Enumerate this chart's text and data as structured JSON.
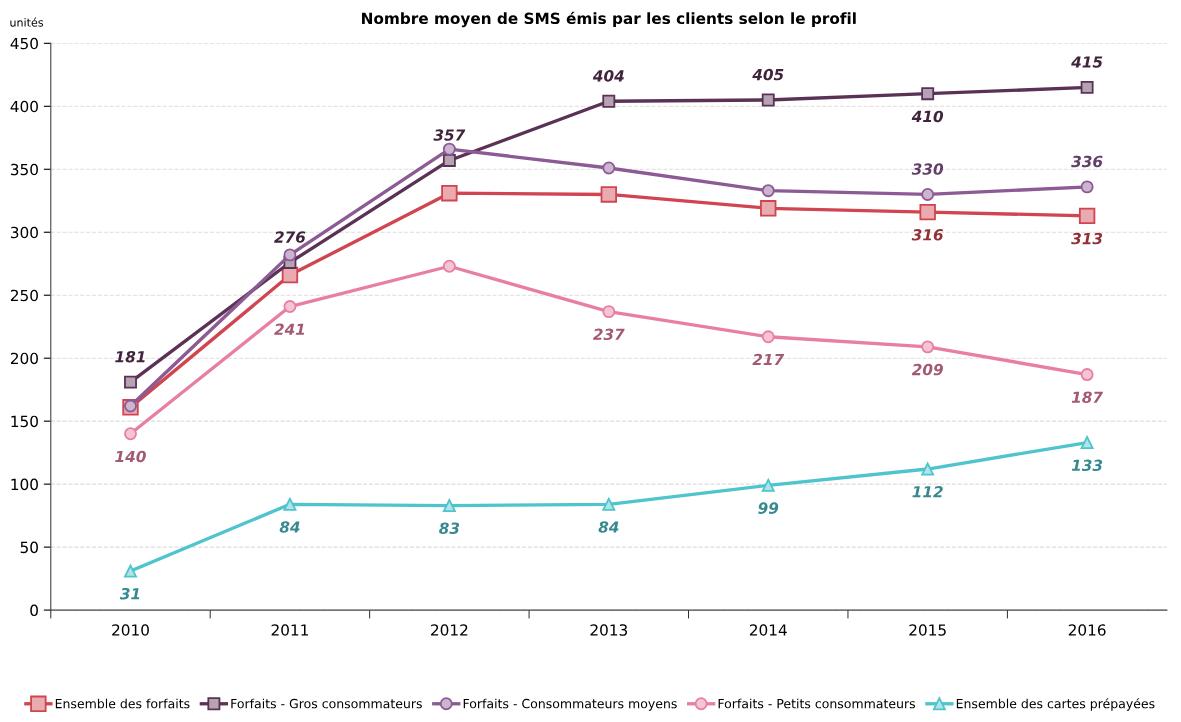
{
  "chart_data": {
    "type": "line",
    "title": "Nombre moyen de SMS émis par les clients selon le profil",
    "ylabel": "unités",
    "categories": [
      "2010",
      "2011",
      "2012",
      "2013",
      "2014",
      "2015",
      "2016"
    ],
    "series": [
      {
        "name": "Ensemble des forfaits",
        "color": "#d0454f",
        "marker": "square",
        "values": [
          161,
          266,
          331,
          330,
          319,
          316,
          313
        ],
        "value_labels": [
          null,
          null,
          null,
          null,
          null,
          "316",
          "313"
        ]
      },
      {
        "name": "Forfaits - Gros consommateurs",
        "color": "#5b3256",
        "marker": "square",
        "values": [
          181,
          276,
          357,
          404,
          405,
          410,
          415
        ],
        "value_labels": [
          "181",
          "276",
          "357",
          "404",
          "405",
          "410",
          "415"
        ]
      },
      {
        "name": "Forfaits - Consommateurs moyens",
        "color": "#8c5a94",
        "marker": "circle",
        "values": [
          162,
          282,
          366,
          351,
          333,
          330,
          336
        ],
        "value_labels": [
          null,
          null,
          null,
          null,
          null,
          "330",
          "336"
        ]
      },
      {
        "name": "Forfaits - Petits consommateurs",
        "color": "#e87fa3",
        "marker": "circle",
        "values": [
          140,
          241,
          273,
          237,
          217,
          209,
          187
        ],
        "value_labels": [
          "140",
          "241",
          null,
          "237",
          "217",
          "209",
          "187"
        ]
      },
      {
        "name": "Ensemble des cartes prépayées",
        "color": "#4fc4cc",
        "marker": "triangle",
        "values": [
          31,
          84,
          83,
          84,
          99,
          112,
          133
        ],
        "value_labels": [
          "31",
          "84",
          "83",
          "84",
          "99",
          "112",
          "133"
        ]
      }
    ],
    "ylim": [
      0,
      450
    ],
    "yticks": [
      0,
      50,
      100,
      150,
      200,
      250,
      300,
      350,
      400,
      450
    ],
    "grid": "y",
    "legend": "bottom",
    "line_style": "solid"
  }
}
